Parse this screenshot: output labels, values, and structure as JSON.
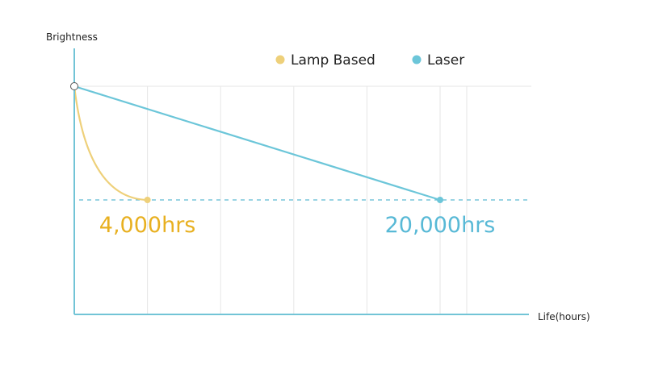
{
  "chart_data": {
    "type": "line",
    "ylabel": "Brightness",
    "xlabel": "Life(hours)",
    "xlim": [
      0,
      23000
    ],
    "ylim": [
      0,
      1
    ],
    "x_grid_every": 4000,
    "grid": true,
    "threshold": 0.5,
    "legend_position": "top",
    "series": [
      {
        "name": "Lamp Based",
        "color": "#EED07A",
        "label_color": "#E8B020",
        "curve": "concave",
        "x": [
          0,
          4000
        ],
        "y": [
          1,
          0.5
        ],
        "end_label": "4,000hrs"
      },
      {
        "name": "Laser",
        "color": "#6CC6D9",
        "label_color": "#58B9D6",
        "curve": "linear",
        "x": [
          0,
          20000
        ],
        "y": [
          1,
          0.5
        ],
        "end_label": "20,000hrs"
      }
    ]
  },
  "colors": {
    "axis": "#72C4D6",
    "grid": "#E6E6E6",
    "threshold_line": "#5DBBD2"
  }
}
